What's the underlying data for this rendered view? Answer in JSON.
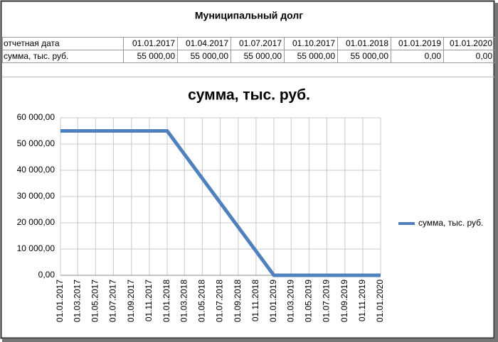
{
  "header": {
    "title": "Муниципальный долг"
  },
  "table": {
    "rows": [
      [
        "отчетная дата",
        "01.01.2017",
        "01.04.2017",
        "01.07.2017",
        "01.10.2017",
        "01.01.2018",
        "01.01.2019",
        "01.01.2020"
      ],
      [
        "сумма, тыс. руб.",
        "55 000,00",
        "55 000,00",
        "55 000,00",
        "55 000,00",
        "55 000,00",
        "0,00",
        "0,00"
      ]
    ]
  },
  "chart_data": {
    "type": "line",
    "title": "сумма, тыс. руб.",
    "x": [
      "01.01.2017",
      "01.04.2017",
      "01.07.2017",
      "01.10.2017",
      "01.01.2018",
      "01.01.2019",
      "01.01.2020"
    ],
    "series": [
      {
        "name": "сумма, тыс. руб.",
        "color": "#4f81bd",
        "values": [
          55000,
          55000,
          55000,
          55000,
          55000,
          0,
          0
        ]
      }
    ],
    "xlim": [
      "01.01.2017",
      "01.01.2020"
    ],
    "xticks": [
      "01.01.2017",
      "01.03.2017",
      "01.05.2017",
      "01.07.2017",
      "01.09.2017",
      "01.11.2017",
      "01.01.2018",
      "01.03.2018",
      "01.05.2018",
      "01.07.2018",
      "01.09.2018",
      "01.11.2018",
      "01.01.2019",
      "01.03.2019",
      "01.05.2019",
      "01.07.2019",
      "01.09.2019",
      "01.11.2019",
      "01.01.2020"
    ],
    "ylim": [
      0,
      60000
    ],
    "yticks": [
      {
        "value": 0,
        "label": "0,00"
      },
      {
        "value": 10000,
        "label": "10 000,00"
      },
      {
        "value": 20000,
        "label": "20 000,00"
      },
      {
        "value": 30000,
        "label": "30 000,00"
      },
      {
        "value": 40000,
        "label": "40 000,00"
      },
      {
        "value": 50000,
        "label": "50 000,00"
      },
      {
        "value": 60000,
        "label": "60 000,00"
      }
    ],
    "grid": true,
    "legend": "right"
  }
}
